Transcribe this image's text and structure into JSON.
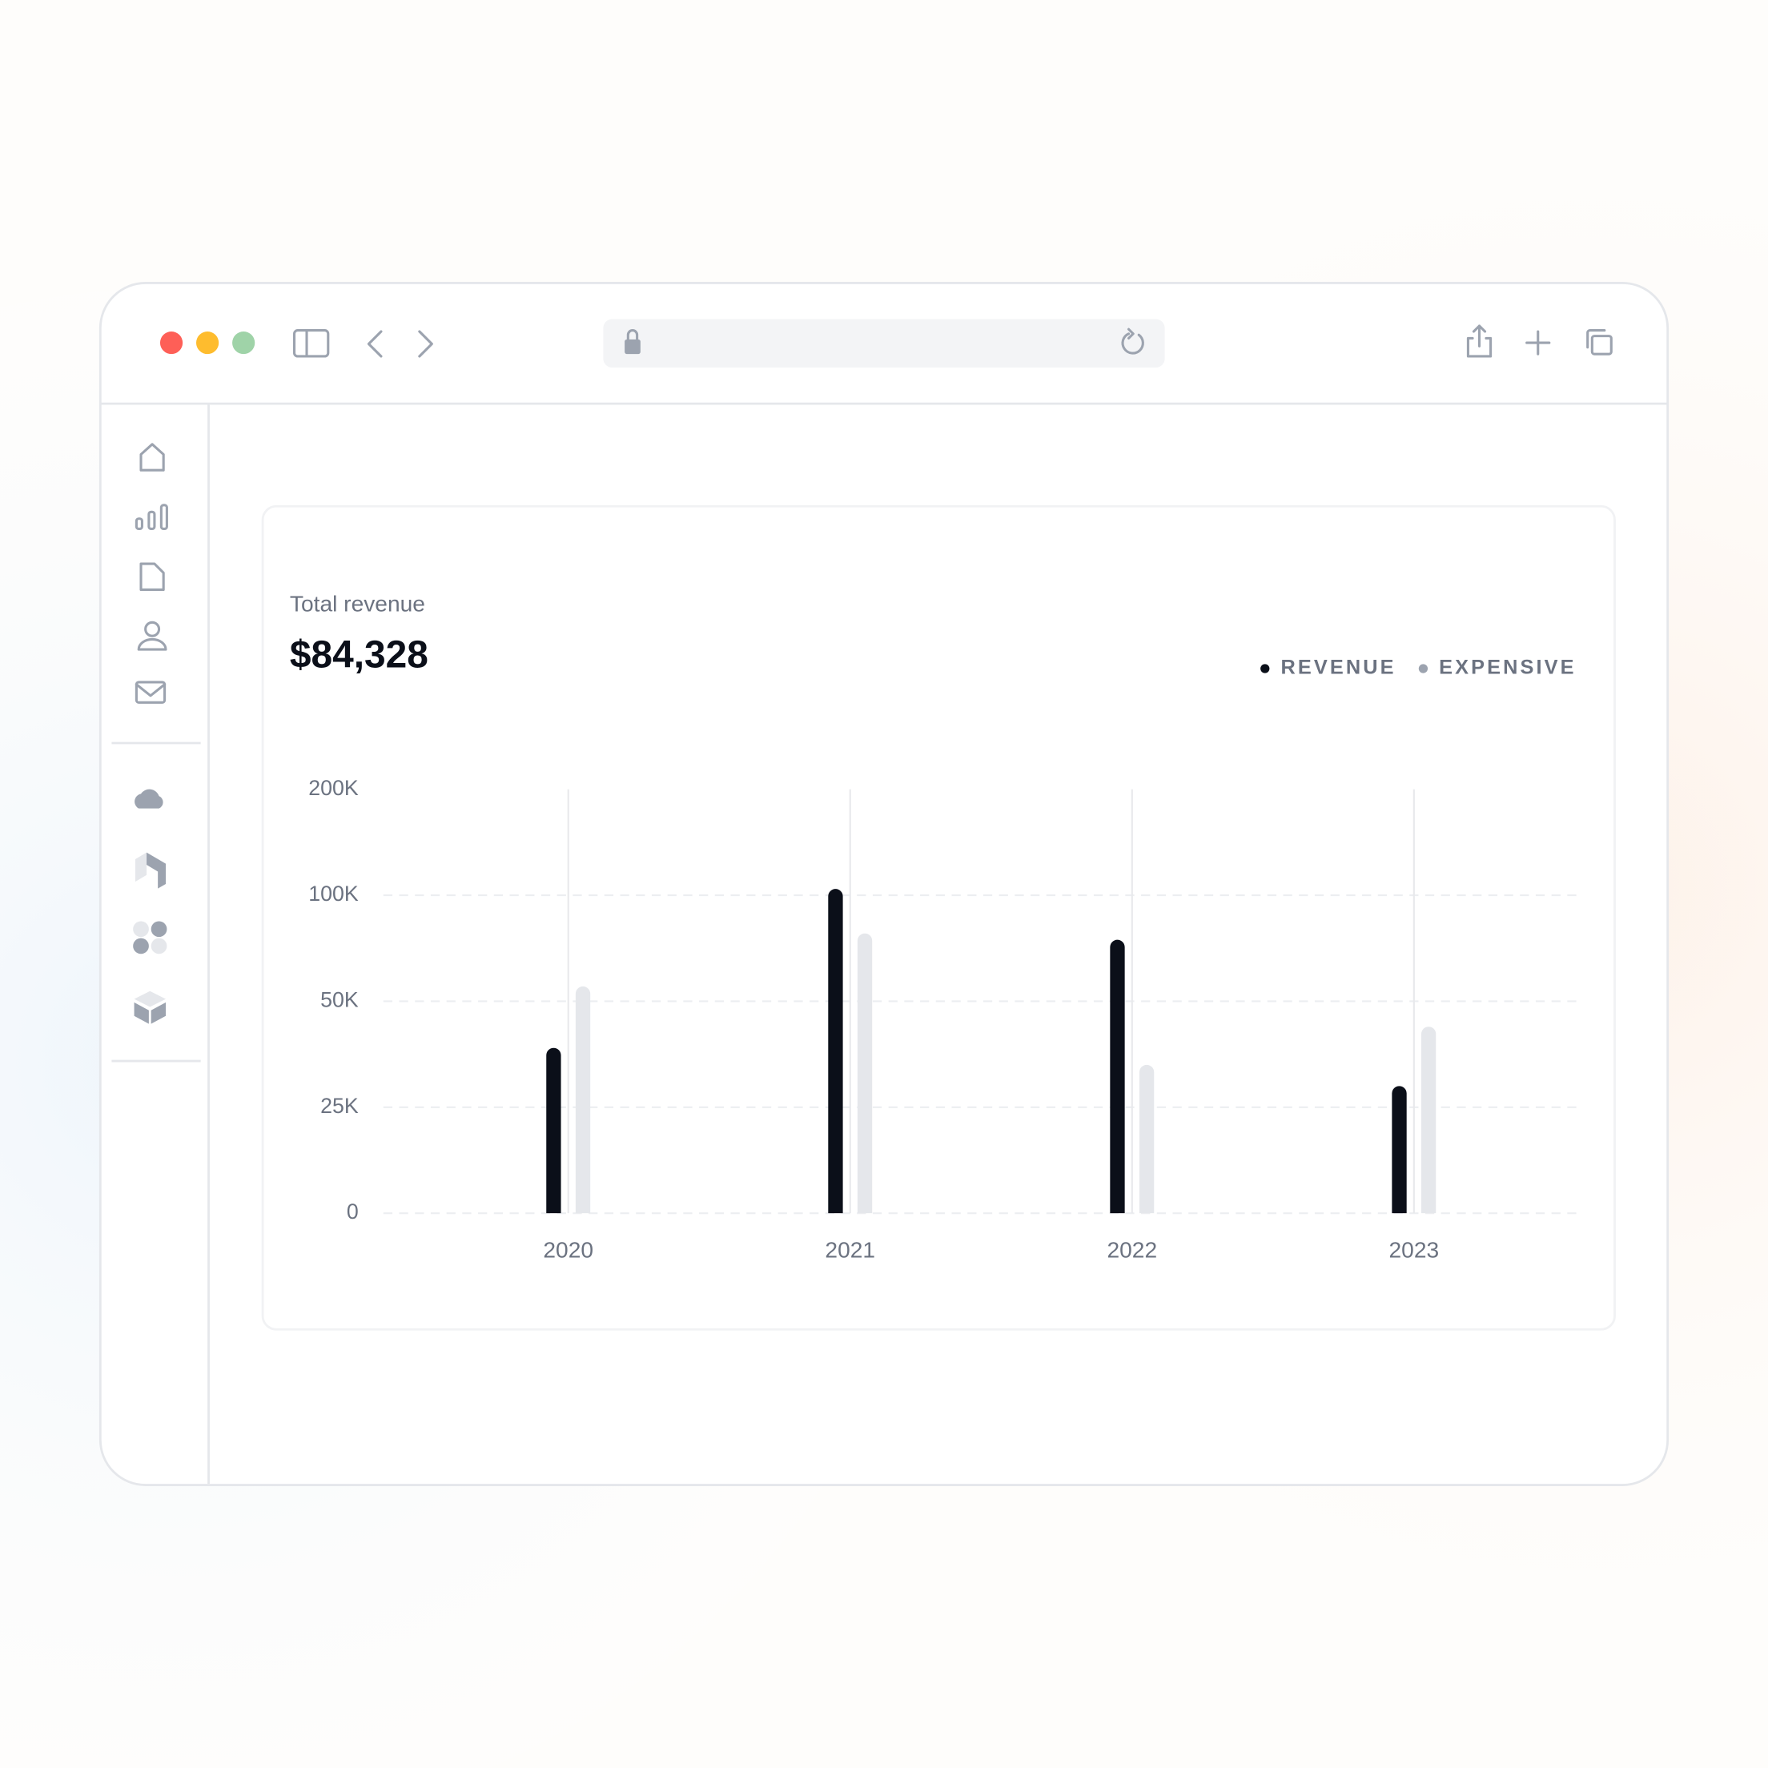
{
  "card": {
    "label": "Total revenue",
    "total": "$84,328"
  },
  "chart_data": {
    "type": "bar",
    "categories": [
      "2020",
      "2021",
      "2022",
      "2023"
    ],
    "series": [
      {
        "name": "REVENUE",
        "color": "#0b0f19",
        "values": [
          39000,
          106000,
          79000,
          30000
        ]
      },
      {
        "name": "EXPENSIVE",
        "color": "#e5e7eb",
        "values": [
          57000,
          82000,
          35000,
          44000
        ]
      }
    ],
    "legend_dot_colors": [
      "#0b0f19",
      "#9ca3af"
    ],
    "ylim": [
      0,
      200000
    ],
    "yticks": [
      0,
      {
        "value": 25000,
        "label": "25K"
      },
      {
        "value": 50000,
        "label": "50K"
      },
      {
        "value": 100000,
        "label": "100K"
      },
      {
        "value": 200000,
        "label": "200K"
      }
    ],
    "grid": true,
    "legend": "top-right"
  }
}
